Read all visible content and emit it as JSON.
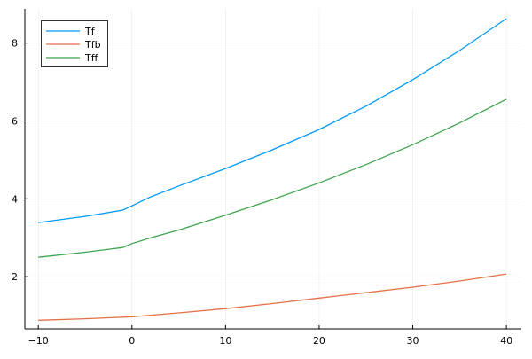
{
  "chart_data": {
    "type": "line",
    "title": "",
    "xlabel": "",
    "ylabel": "",
    "xlim": [
      -11.44,
      41.6
    ],
    "ylim": [
      0.66,
      8.88
    ],
    "xticks": [
      -10,
      0,
      10,
      20,
      30,
      40
    ],
    "xtick_labels": [
      "−10",
      "0",
      "10",
      "20",
      "30",
      "40"
    ],
    "yticks": [
      2,
      4,
      6,
      8
    ],
    "ytick_labels": [
      "2",
      "4",
      "6",
      "8"
    ],
    "grid": true,
    "legend": "top-left",
    "x": [
      -10,
      -5,
      -1,
      0,
      2,
      5,
      10,
      15,
      20,
      25,
      30,
      35,
      40
    ],
    "series": [
      {
        "name": "Tf",
        "color": "#009AFA",
        "values": [
          3.39,
          3.55,
          3.71,
          3.82,
          4.05,
          4.33,
          4.78,
          5.26,
          5.78,
          6.38,
          7.06,
          7.81,
          8.63
        ]
      },
      {
        "name": "Tfb",
        "color": "#E36F47",
        "values": [
          0.88,
          0.92,
          0.96,
          0.97,
          1.01,
          1.07,
          1.18,
          1.31,
          1.45,
          1.59,
          1.73,
          1.89,
          2.07
        ]
      },
      {
        "name": "Tff",
        "color": "#3EA44E",
        "values": [
          2.5,
          2.63,
          2.75,
          2.85,
          3.0,
          3.2,
          3.58,
          3.98,
          4.41,
          4.88,
          5.39,
          5.95,
          6.56
        ]
      }
    ]
  }
}
